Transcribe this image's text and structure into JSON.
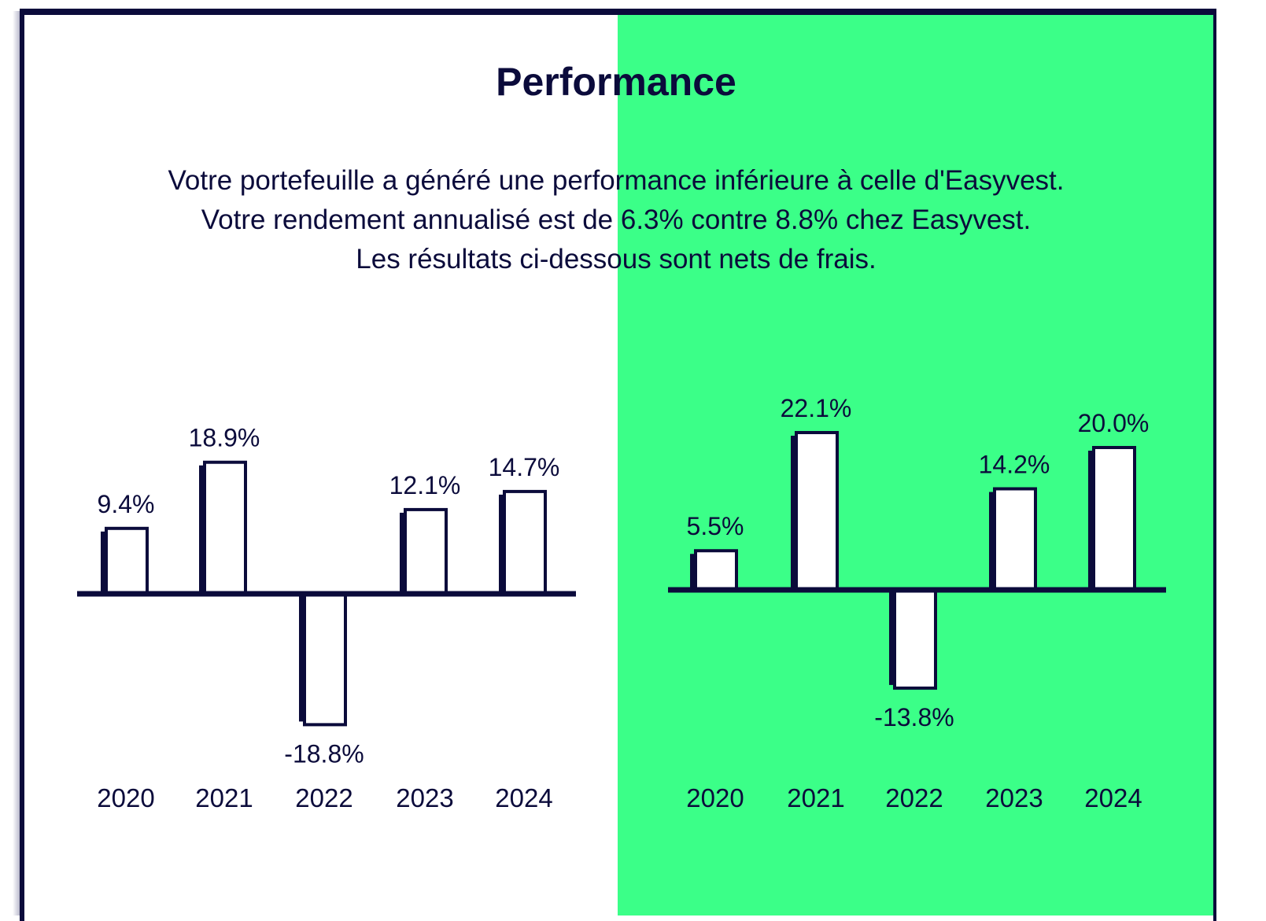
{
  "title": "Performance",
  "description": [
    "Votre portefeuille a généré une performance inférieure à celle d'Easyvest.",
    "Votre rendement annualisé est de 6.3% contre 8.8% chez Easyvest.",
    "Les résultats ci-dessous sont nets de frais."
  ],
  "colors": {
    "navy": "#0b0b3b",
    "green": "#3bff88",
    "bar_fill": "#ffffff"
  },
  "chart_data": [
    {
      "type": "bar",
      "name": "Votre portefeuille",
      "categories": [
        "2020",
        "2021",
        "2022",
        "2023",
        "2024"
      ],
      "values": [
        9.4,
        18.9,
        -18.8,
        12.1,
        14.7
      ],
      "labels": [
        "9.4%",
        "18.9%",
        "-18.8%",
        "12.1%",
        "14.7%"
      ],
      "grid": false
    },
    {
      "type": "bar",
      "name": "Easyvest",
      "categories": [
        "2020",
        "2021",
        "2022",
        "2023",
        "2024"
      ],
      "values": [
        5.5,
        22.1,
        -13.8,
        14.2,
        20.0
      ],
      "labels": [
        "5.5%",
        "22.1%",
        "-13.8%",
        "14.2%",
        "20.0%"
      ],
      "grid": false
    }
  ]
}
